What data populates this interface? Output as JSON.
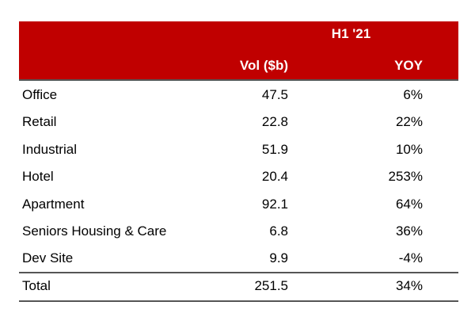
{
  "header": {
    "period": "H1 '21",
    "col_vol": "Vol ($b)",
    "col_yoy": "YOY",
    "fill_color": "#c00000"
  },
  "rows": [
    {
      "name": "Office",
      "vol": "47.5",
      "yoy": "6%"
    },
    {
      "name": "Retail",
      "vol": "22.8",
      "yoy": "22%"
    },
    {
      "name": "Industrial",
      "vol": "51.9",
      "yoy": "10%"
    },
    {
      "name": "Hotel",
      "vol": "20.4",
      "yoy": "253%"
    },
    {
      "name": "Apartment",
      "vol": "92.1",
      "yoy": "64%"
    },
    {
      "name": "Seniors Housing & Care",
      "vol": "6.8",
      "yoy": "36%"
    },
    {
      "name": "Dev Site",
      "vol": "9.9",
      "yoy": "-4%"
    }
  ],
  "total": {
    "name": "Total",
    "vol": "251.5",
    "yoy": "34%"
  }
}
